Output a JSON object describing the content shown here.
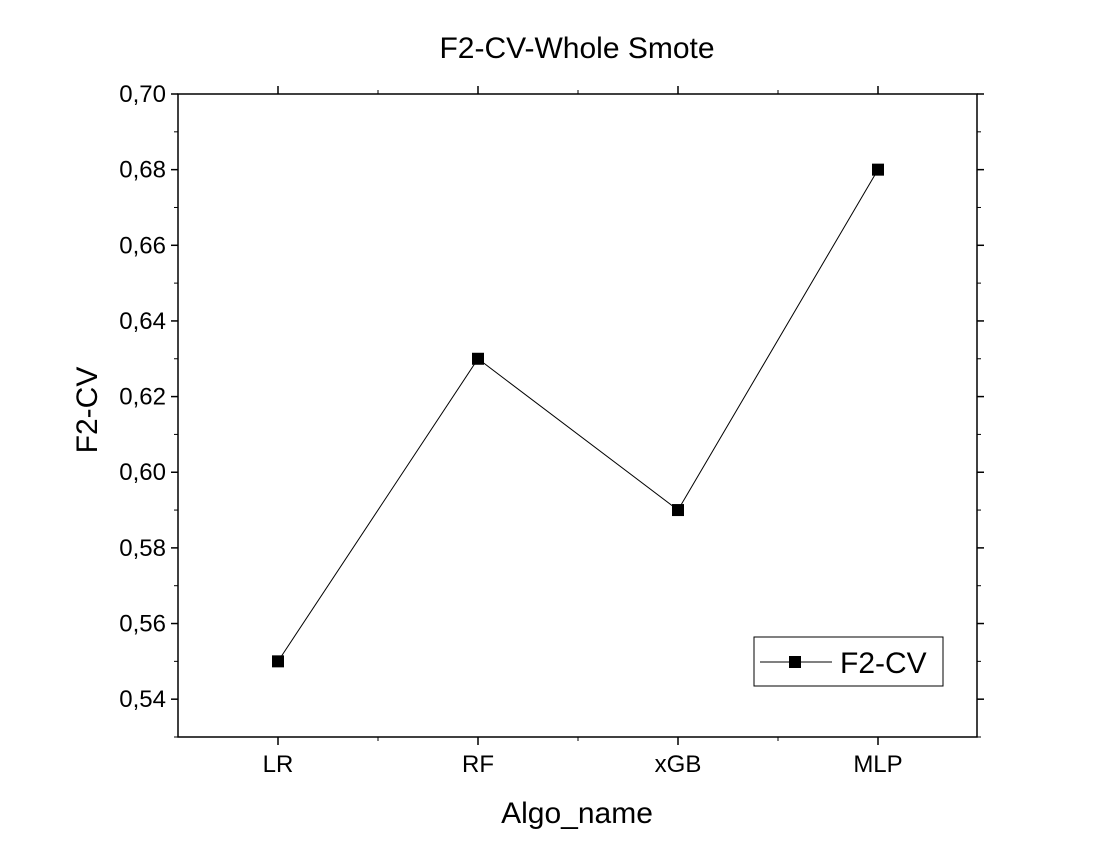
{
  "chart_data": {
    "type": "line",
    "title": "F2-CV-Whole Smote",
    "xlabel": "Algo_name",
    "ylabel": "F2-CV",
    "categories": [
      "LR",
      "RF",
      "xGB",
      "MLP"
    ],
    "series": [
      {
        "name": "F2-CV",
        "values": [
          0.55,
          0.63,
          0.59,
          0.68
        ],
        "marker": "square"
      }
    ],
    "ylim": [
      0.53,
      0.7
    ],
    "yticks": [
      0.54,
      0.56,
      0.58,
      0.6,
      0.62,
      0.64,
      0.66,
      0.68,
      0.7
    ],
    "ytick_labels": [
      "0,54",
      "0,56",
      "0,58",
      "0,60",
      "0,62",
      "0,64",
      "0,66",
      "0,68",
      "0,70"
    ],
    "grid": false,
    "legend_position": "bottom-right",
    "colors": {
      "line": "#000000",
      "marker": "#000000",
      "axes": "#000000",
      "background": "#ffffff"
    }
  }
}
